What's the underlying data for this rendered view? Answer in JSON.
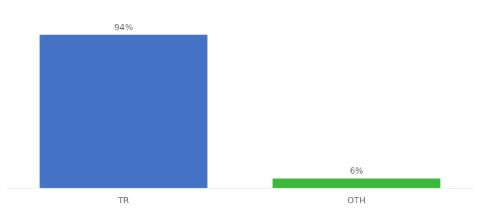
{
  "chart_data": {
    "type": "bar",
    "categories": [
      "TR",
      "OTH"
    ],
    "values": [
      94,
      6
    ],
    "value_labels": [
      "94%",
      "6%"
    ],
    "colors": [
      "#4472c4",
      "#3cb83c"
    ],
    "ylim": [
      0,
      105
    ],
    "data_labels": true,
    "tick_labels": "x",
    "grid": false
  }
}
